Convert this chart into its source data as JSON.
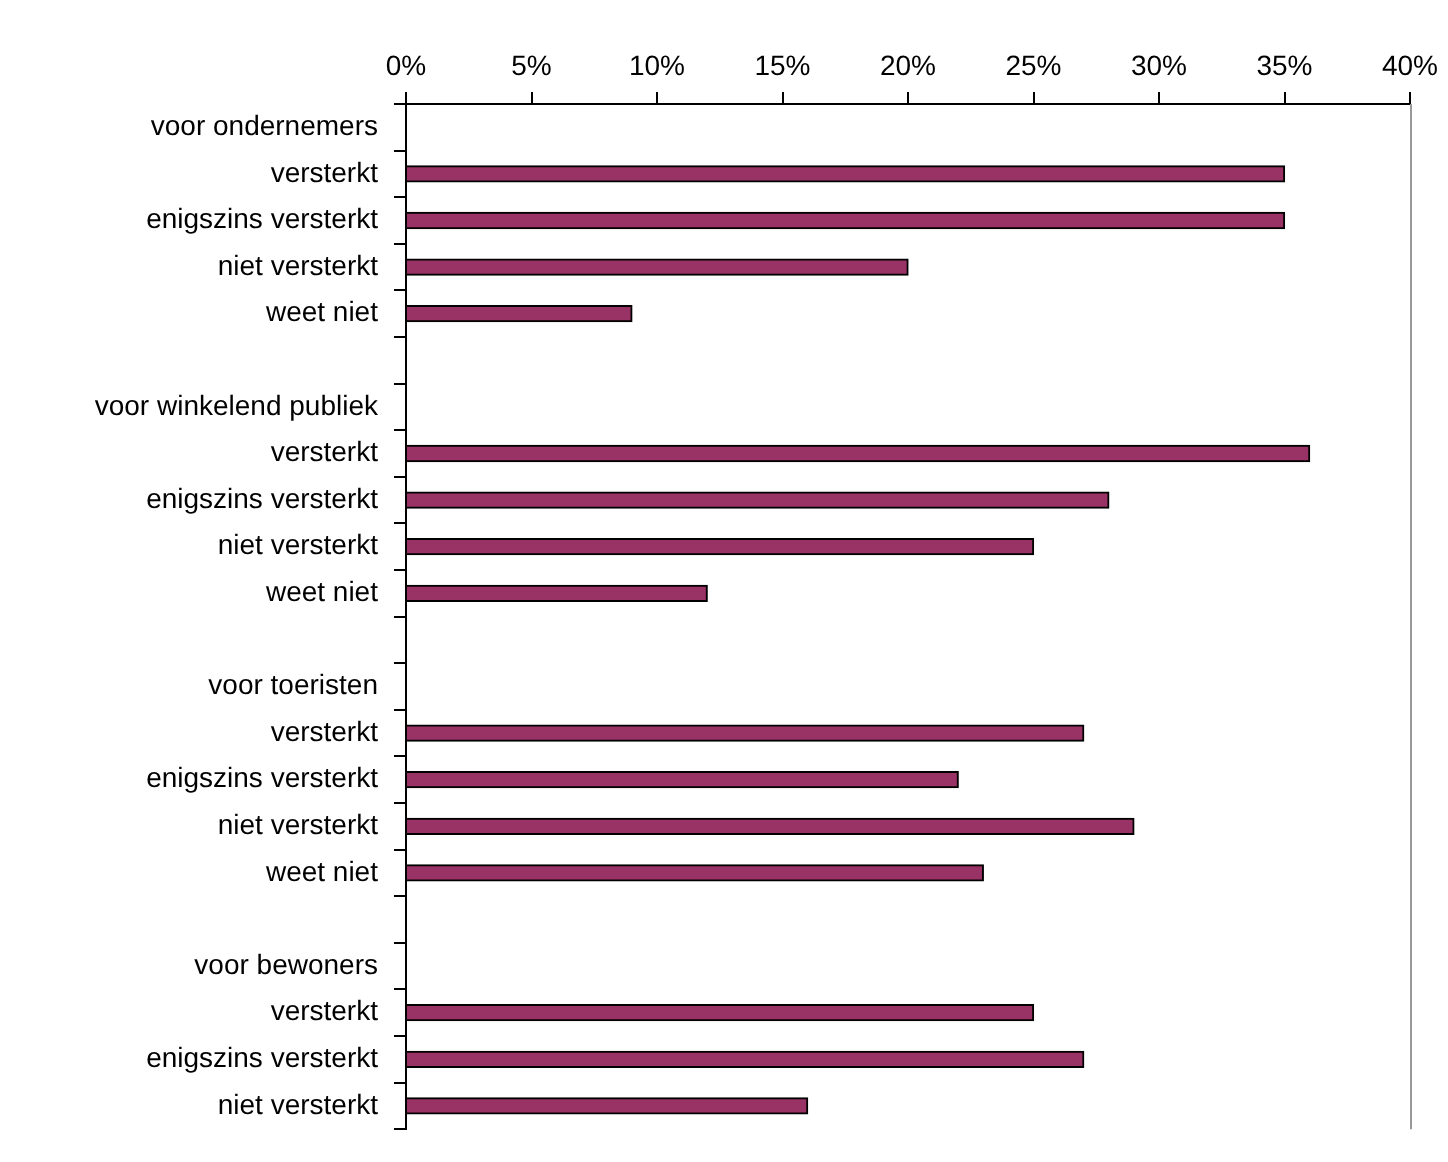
{
  "chart_data": {
    "type": "bar",
    "orientation": "horizontal",
    "categories": [
      "voor ondernemers",
      "versterkt",
      "enigszins versterkt",
      "niet versterkt",
      "weet niet",
      null,
      "voor winkelend publiek",
      "versterkt",
      "enigszins versterkt",
      "niet versterkt",
      "weet niet",
      null,
      "voor toeristen",
      "versterkt",
      "enigszins versterkt",
      "niet versterkt",
      "weet niet",
      null,
      "voor bewoners",
      "versterkt",
      "enigszins versterkt",
      "niet versterkt"
    ],
    "values": [
      null,
      35,
      35,
      20,
      9,
      null,
      null,
      36,
      28,
      25,
      12,
      null,
      null,
      27,
      22,
      29,
      23,
      null,
      null,
      25,
      27,
      16
    ],
    "color": "#993366",
    "xlim": [
      0,
      40
    ],
    "xticks": [
      {
        "value": 0,
        "label": "0%"
      },
      {
        "value": 5,
        "label": "5%"
      },
      {
        "value": 10,
        "label": "10%"
      },
      {
        "value": 15,
        "label": "15%"
      },
      {
        "value": 20,
        "label": "20%"
      },
      {
        "value": 25,
        "label": "25%"
      },
      {
        "value": 30,
        "label": "30%"
      },
      {
        "value": 35,
        "label": "35%"
      },
      {
        "value": 40,
        "label": "40%"
      }
    ],
    "grid": false,
    "legend": false
  }
}
